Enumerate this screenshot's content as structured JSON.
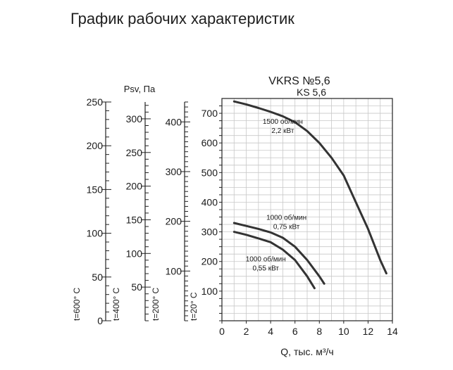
{
  "title": "График рабочих характеристик",
  "chart_data": {
    "type": "line",
    "title": "VKRS №5,6",
    "subtitle": "KS 5,6",
    "xlabel": "Q, тыс. м³/ч",
    "ylabel": "Psv, Па",
    "xlim": [
      0,
      14
    ],
    "ylim": [
      0,
      750
    ],
    "x_ticks": [
      0,
      2,
      4,
      6,
      8,
      10,
      12,
      14
    ],
    "y_ticks": [
      100,
      200,
      300,
      400,
      500,
      600,
      700
    ],
    "grid": true,
    "pressure_scales": [
      {
        "label": "t=600° C",
        "max": 250,
        "ticks": [
          0,
          50,
          100,
          150,
          200,
          250
        ],
        "tick_labels": [
          "0",
          "50",
          "100",
          "150",
          "200",
          "250"
        ]
      },
      {
        "label": "t=400° C",
        "max": 325,
        "ticks": [
          50,
          100,
          150,
          200,
          250,
          300
        ],
        "tick_labels": [
          "50",
          "100",
          "150",
          "200",
          "250",
          "300"
        ]
      },
      {
        "label": "t=200° C",
        "max": 440,
        "ticks": [
          100,
          200,
          300,
          400
        ],
        "tick_labels": [
          "100",
          "200",
          "300",
          "400"
        ]
      },
      {
        "label": "t=20° C",
        "max": 750,
        "ticks": [
          100,
          200,
          300,
          400,
          500,
          600,
          700
        ],
        "tick_labels": []
      }
    ],
    "series": [
      {
        "label_lines": [
          "1500 об/мин",
          "2,2 кВт"
        ],
        "label_at": [
          5,
          665
        ],
        "x": [
          1,
          2,
          3,
          4,
          5,
          6,
          7,
          8,
          9,
          10,
          11,
          12,
          13,
          13.5
        ],
        "y": [
          740,
          730,
          718,
          705,
          690,
          670,
          640,
          600,
          550,
          490,
          400,
          310,
          205,
          160
        ]
      },
      {
        "label_lines": [
          "1000 об/мин",
          "0,75 кВт"
        ],
        "label_at": [
          5.3,
          340
        ],
        "x": [
          1,
          2,
          3,
          4,
          5,
          6,
          7,
          8,
          8.4
        ],
        "y": [
          330,
          320,
          310,
          298,
          280,
          250,
          205,
          150,
          125
        ]
      },
      {
        "label_lines": [
          "1000 об/мин",
          "0,55 кВт"
        ],
        "label_at": [
          3.6,
          200
        ],
        "x": [
          1,
          2,
          3,
          4,
          5,
          6,
          7,
          7.6
        ],
        "y": [
          300,
          290,
          278,
          265,
          240,
          205,
          150,
          110
        ]
      }
    ]
  }
}
